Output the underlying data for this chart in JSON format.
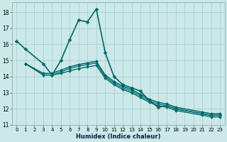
{
  "xlabel": "Humidex (Indice chaleur)",
  "ylabel": "",
  "background_color": "#cce8e8",
  "grid_color": "#b0d0d0",
  "xlim": [
    -0.5,
    23.5
  ],
  "ylim": [
    11,
    18.6
  ],
  "yticks": [
    11,
    12,
    13,
    14,
    15,
    16,
    17,
    18
  ],
  "xticks": [
    0,
    1,
    2,
    3,
    4,
    5,
    6,
    7,
    8,
    9,
    10,
    11,
    12,
    13,
    14,
    15,
    16,
    17,
    18,
    19,
    20,
    21,
    22,
    23
  ],
  "lines": [
    {
      "x": [
        0,
        1,
        3,
        4,
        5,
        6,
        7,
        8,
        9,
        10,
        11,
        12,
        13,
        14,
        15,
        16,
        17,
        18,
        21,
        22,
        23
      ],
      "y": [
        16.2,
        15.7,
        14.8,
        14.1,
        15.0,
        16.3,
        17.5,
        17.4,
        18.2,
        15.5,
        14.0,
        13.5,
        13.3,
        13.1,
        12.5,
        12.1,
        12.2,
        12.0,
        11.7,
        11.6,
        11.6
      ],
      "color": "#006868",
      "lw": 1.2,
      "marker": "D",
      "ms": 2.5
    },
    {
      "x": [
        1,
        3,
        4,
        5,
        6,
        7,
        8,
        9,
        10,
        11,
        12,
        13,
        14,
        15,
        16,
        17,
        18,
        21,
        22,
        23
      ],
      "y": [
        14.8,
        14.1,
        14.1,
        14.2,
        14.35,
        14.5,
        14.6,
        14.7,
        13.9,
        13.5,
        13.2,
        13.0,
        12.7,
        12.4,
        12.2,
        12.1,
        11.9,
        11.6,
        11.5,
        11.5
      ],
      "color": "#006868",
      "lw": 1.0,
      "marker": "D",
      "ms": 2.0
    },
    {
      "x": [
        1,
        3,
        4,
        5,
        6,
        7,
        8,
        9,
        10,
        11,
        12,
        13,
        14,
        15,
        16,
        17,
        18,
        21,
        22,
        23
      ],
      "y": [
        14.8,
        14.1,
        14.1,
        14.3,
        14.5,
        14.65,
        14.75,
        14.85,
        14.0,
        13.6,
        13.3,
        13.1,
        12.8,
        12.5,
        12.3,
        12.2,
        12.0,
        11.7,
        11.6,
        11.6
      ],
      "color": "#007878",
      "lw": 1.0,
      "marker": "D",
      "ms": 2.0
    },
    {
      "x": [
        1,
        3,
        4,
        5,
        6,
        7,
        8,
        9,
        10,
        11,
        12,
        13,
        14,
        15,
        16,
        17,
        18,
        21,
        22,
        23
      ],
      "y": [
        14.8,
        14.2,
        14.2,
        14.4,
        14.6,
        14.75,
        14.85,
        14.95,
        14.1,
        13.7,
        13.4,
        13.2,
        12.9,
        12.6,
        12.4,
        12.3,
        12.1,
        11.8,
        11.7,
        11.7
      ],
      "color": "#006060",
      "lw": 1.0,
      "marker": "D",
      "ms": 2.0
    }
  ]
}
